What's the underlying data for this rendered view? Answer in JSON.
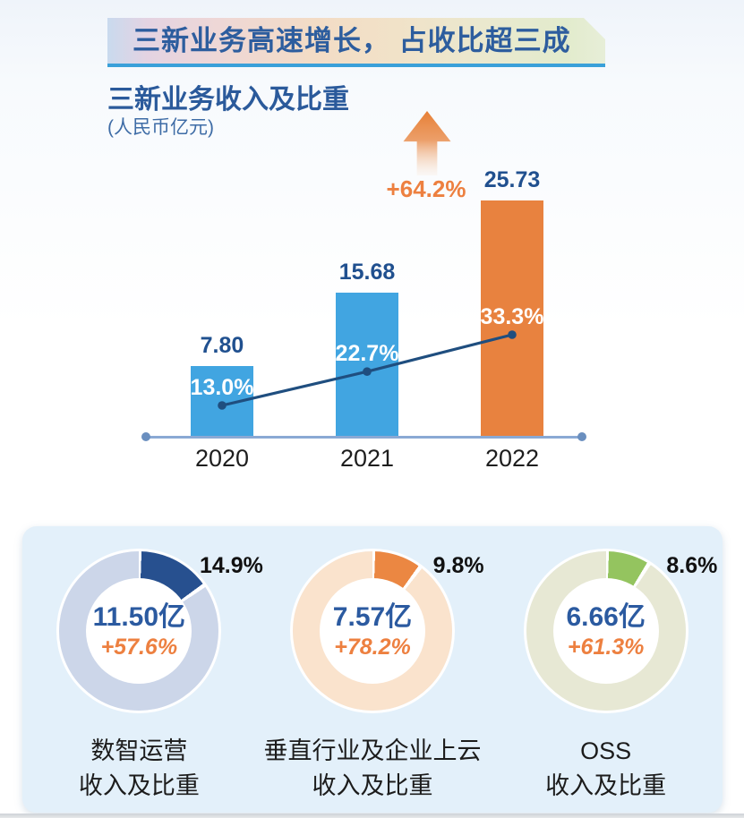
{
  "banner": {
    "title": "三新业务高速增长， 占收比超三成"
  },
  "section": {
    "title": "三新业务收入及比重",
    "unit": "(人民币亿元)"
  },
  "chart_data": [
    {
      "type": "bar",
      "title": "三新业务收入及比重",
      "unit_label": "人民币亿元",
      "categories": [
        "2020",
        "2021",
        "2022"
      ],
      "series": [
        {
          "name": "三新业务收入",
          "type": "bar",
          "values": [
            7.8,
            15.68,
            25.73
          ],
          "value_labels": [
            "7.80",
            "15.68",
            "25.73"
          ],
          "colors": [
            "#41a5e1",
            "#41a5e1",
            "#e8823f"
          ]
        },
        {
          "name": "占收比",
          "type": "line",
          "values": [
            13.0,
            22.7,
            33.3
          ],
          "value_labels": [
            "13.0%",
            "22.7%",
            "33.3%"
          ],
          "color": "#1f4e7f"
        }
      ],
      "annotation": {
        "text": "+64.2%",
        "color": "#ed8040",
        "icon": "up-arrow"
      },
      "ylim": [
        0,
        28
      ],
      "grid": false,
      "legend": false
    },
    {
      "type": "pie",
      "name": "数智运营",
      "label_line1": "数智运营",
      "label_line2": "收入及比重",
      "share_pct": 14.9,
      "share_label": "14.9%",
      "value_label": "11.50亿",
      "growth_label": "+57.6%",
      "segment_color": "#27508f",
      "ring_color": "#ccd6e9"
    },
    {
      "type": "pie",
      "name": "垂直行业及企业上云",
      "label_line1": "垂直行业及企业上云",
      "label_line2": "收入及比重",
      "share_pct": 9.8,
      "share_label": "9.8%",
      "value_label": "7.57亿",
      "growth_label": "+78.2%",
      "segment_color": "#eb8742",
      "ring_color": "#fae3cd"
    },
    {
      "type": "pie",
      "name": "OSS",
      "label_line1": "OSS",
      "label_line2": "收入及比重",
      "share_pct": 8.6,
      "share_label": "8.6%",
      "value_label": "6.66亿",
      "growth_label": "+61.3%",
      "segment_color": "#94c45f",
      "ring_color": "#e7e8d4"
    }
  ],
  "colors": {
    "bar_blue": "#41a5e1",
    "bar_orange": "#e8823f",
    "value_text": "#20508f",
    "pct_text_on_bar": "#ffffff",
    "growth_orange": "#ed8040",
    "line": "#1f4e7f",
    "axis": "#8aa9d4",
    "banner_underline": "#3aa0d9",
    "panel_bg": "#e3f0fa"
  }
}
